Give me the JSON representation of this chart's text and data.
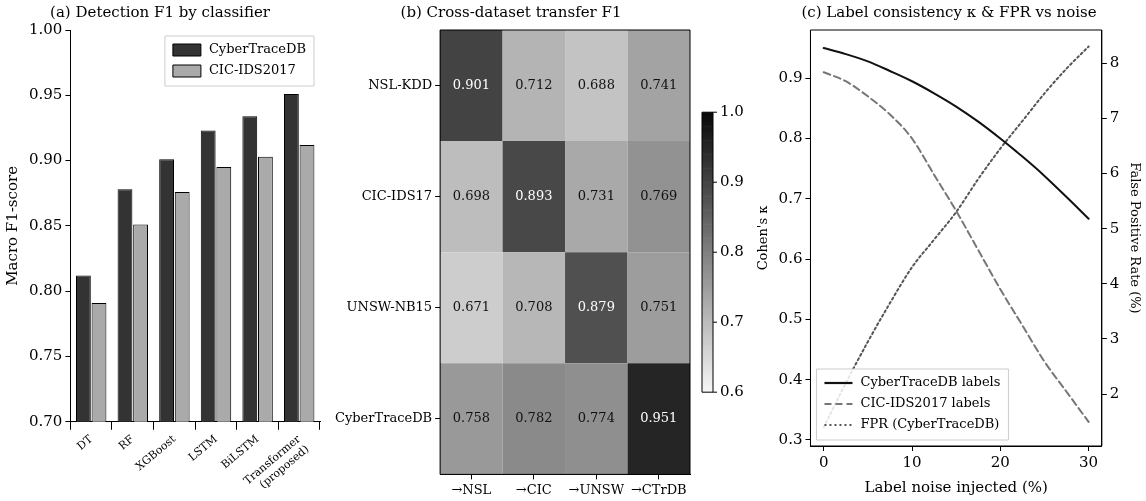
{
  "chart_data": [
    {
      "type": "bar",
      "title": "(a) Detection F1 by classifier",
      "ylabel": "Macro F1-score",
      "categories": [
        "DT",
        "RF",
        "XGBoost",
        "LSTM",
        "BiLSTM",
        "Transformer\n(proposed)"
      ],
      "series": [
        {
          "name": "CyberTraceDB",
          "color": "#333333",
          "values": [
            0.812,
            0.878,
            0.901,
            0.923,
            0.934,
            0.951
          ]
        },
        {
          "name": "CIC-IDS2017",
          "color": "#aaaaaa",
          "values": [
            0.791,
            0.851,
            0.876,
            0.895,
            0.903,
            0.912
          ]
        }
      ],
      "ylim": [
        0.7,
        1.0
      ],
      "yticks": [
        {
          "value": 0.7,
          "label": "0.70"
        },
        {
          "value": 0.75,
          "label": "0.75"
        },
        {
          "value": 0.8,
          "label": "0.80"
        },
        {
          "value": 0.85,
          "label": "0.85"
        },
        {
          "value": 0.9,
          "label": "0.90"
        },
        {
          "value": 0.95,
          "label": "0.95"
        },
        {
          "value": 1.0,
          "label": "1.00"
        }
      ],
      "legend": "top right"
    },
    {
      "type": "heatmap",
      "title": "(b) Cross-dataset transfer F1",
      "categories": [
        "→NSL",
        "→CIC",
        "→UNSW",
        "→CTrDB"
      ],
      "y_categories": [
        "NSL-KDD",
        "CIC-IDS17",
        "UNSW-NB15",
        "CyberTraceDB"
      ],
      "cells": [
        [
          0.901,
          0.712,
          0.688,
          0.741
        ],
        [
          0.698,
          0.893,
          0.731,
          0.769
        ],
        [
          0.671,
          0.708,
          0.879,
          0.751
        ],
        [
          0.758,
          0.782,
          0.774,
          0.951
        ]
      ],
      "clim": [
        0.6,
        1.0
      ],
      "cticks": [
        0.6,
        0.7,
        0.8,
        0.9,
        {
          "value": 1.0,
          "label": "1.0"
        }
      ],
      "data_labels": true
    },
    {
      "type": "line",
      "title": "(c) Label consistency κ & FPR vs noise",
      "xlabel": "Label noise injected (%)",
      "ylabel": "Cohen's κ",
      "y2label": "False Positive Rate (%)",
      "x": [
        0,
        2.5,
        5,
        7.5,
        10,
        12.5,
        15,
        17.5,
        20,
        22.5,
        25,
        27.5,
        30
      ],
      "series": [
        {
          "name": "CyberTraceDB labels",
          "color": "#111111",
          "line_style": "solid",
          "values": [
            0.95,
            0.94,
            0.928,
            0.912,
            0.895,
            0.875,
            0.853,
            0.828,
            0.8,
            0.77,
            0.738,
            0.703,
            0.667
          ]
        },
        {
          "name": "CIC-IDS2017 labels",
          "color": "#777777",
          "line_style": "dashed",
          "values": [
            0.91,
            0.895,
            0.87,
            0.84,
            0.8,
            0.74,
            0.68,
            0.615,
            0.55,
            0.49,
            0.43,
            0.38,
            0.33
          ]
        },
        {
          "name": "FPR (CyberTraceDB)",
          "color": "#555555",
          "line_style": "dotted",
          "axis": "y2",
          "values": [
            1.4,
            2.2,
            2.95,
            3.65,
            4.3,
            4.8,
            5.3,
            5.9,
            6.45,
            6.95,
            7.45,
            7.9,
            8.3
          ]
        }
      ],
      "xlim": [
        -1.5,
        31.5
      ],
      "xticks": [
        0,
        10,
        20,
        30
      ],
      "ylim": [
        0.29,
        0.98
      ],
      "yticks": [
        0.3,
        0.4,
        0.5,
        0.6,
        0.7,
        0.8,
        0.9
      ],
      "y2lim": [
        1.06,
        8.6
      ],
      "y2ticks": [
        2,
        3,
        4,
        5,
        6,
        7,
        8
      ],
      "legend": "bottom left"
    }
  ]
}
